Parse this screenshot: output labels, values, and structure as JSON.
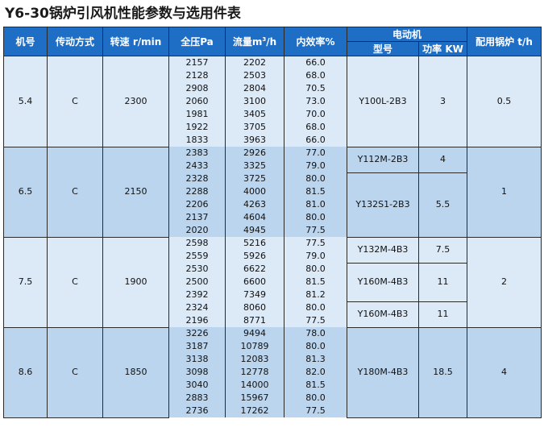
{
  "title": "Y6-30锅炉引风机性能参数与选用件表",
  "headers": {
    "model_no": "机号",
    "drive": "传动方式",
    "speed": "转速 r/min",
    "pressure": "全压Pa",
    "flow_prefix": "流量m",
    "flow_sup": "3",
    "flow_suffix": "/h",
    "efficiency": "内效率%",
    "motor": "电动机",
    "motor_type": "型号",
    "motor_power": "功率 KW",
    "boiler": "配用锅炉 t/h"
  },
  "groups": [
    {
      "model_no": "5.4",
      "drive": "C",
      "speed": "2300",
      "boiler": "0.5",
      "rows": [
        {
          "pressure": "2157",
          "flow": "2202",
          "efficiency": "66.0"
        },
        {
          "pressure": "2128",
          "flow": "2503",
          "efficiency": "68.0"
        },
        {
          "pressure": "2908",
          "flow": "2804",
          "efficiency": "70.5"
        },
        {
          "pressure": "2060",
          "flow": "3100",
          "efficiency": "73.0"
        },
        {
          "pressure": "1981",
          "flow": "3405",
          "efficiency": "70.0"
        },
        {
          "pressure": "1922",
          "flow": "3705",
          "efficiency": "68.0"
        },
        {
          "pressure": "1833",
          "flow": "3963",
          "efficiency": "66.0"
        }
      ],
      "motors": [
        {
          "type": "Y100L-2B3",
          "power": "3",
          "rowspan": 7
        }
      ]
    },
    {
      "model_no": "6.5",
      "drive": "C",
      "speed": "2150",
      "boiler": "1",
      "rows": [
        {
          "pressure": "2383",
          "flow": "2926",
          "efficiency": "77.0"
        },
        {
          "pressure": "2433",
          "flow": "3325",
          "efficiency": "79.0"
        },
        {
          "pressure": "2328",
          "flow": "3725",
          "efficiency": "80.0"
        },
        {
          "pressure": "2288",
          "flow": "4000",
          "efficiency": "81.5"
        },
        {
          "pressure": "2206",
          "flow": "4263",
          "efficiency": "81.0"
        },
        {
          "pressure": "2137",
          "flow": "4604",
          "efficiency": "80.0"
        },
        {
          "pressure": "2020",
          "flow": "4945",
          "efficiency": "77.5"
        }
      ],
      "motors": [
        {
          "type": "Y112M-2B3",
          "power": "4",
          "rowspan": 2
        },
        {
          "type": "Y132S1-2B3",
          "power": "5.5",
          "rowspan": 5
        }
      ]
    },
    {
      "model_no": "7.5",
      "drive": "C",
      "speed": "1900",
      "boiler": "2",
      "rows": [
        {
          "pressure": "2598",
          "flow": "5216",
          "efficiency": "77.5"
        },
        {
          "pressure": "2559",
          "flow": "5926",
          "efficiency": "79.0"
        },
        {
          "pressure": "2530",
          "flow": "6622",
          "efficiency": "80.0"
        },
        {
          "pressure": "2500",
          "flow": "6600",
          "efficiency": "81.5"
        },
        {
          "pressure": "2392",
          "flow": "7349",
          "efficiency": "81.2"
        },
        {
          "pressure": "2324",
          "flow": "8060",
          "efficiency": "80.0"
        },
        {
          "pressure": "2196",
          "flow": "8771",
          "efficiency": "77.5"
        }
      ],
      "motors": [
        {
          "type": "Y132M-4B3",
          "power": "7.5",
          "rowspan": 2
        },
        {
          "type": "Y160M-4B3",
          "power": "11",
          "rowspan": 3
        },
        {
          "type": "Y160M-4B3",
          "power": "11",
          "rowspan": 2
        }
      ]
    },
    {
      "model_no": "8.6",
      "drive": "C",
      "speed": "1850",
      "boiler": "4",
      "rows": [
        {
          "pressure": "3226",
          "flow": "9494",
          "efficiency": "78.0"
        },
        {
          "pressure": "3187",
          "flow": "10789",
          "efficiency": "80.0"
        },
        {
          "pressure": "3138",
          "flow": "12083",
          "efficiency": "81.3"
        },
        {
          "pressure": "3098",
          "flow": "12778",
          "efficiency": "82.0"
        },
        {
          "pressure": "3040",
          "flow": "14000",
          "efficiency": "81.5"
        },
        {
          "pressure": "2883",
          "flow": "15967",
          "efficiency": "80.0"
        },
        {
          "pressure": "2736",
          "flow": "17262",
          "efficiency": "77.5"
        }
      ],
      "motors": [
        {
          "type": "Y180M-4B3",
          "power": "18.5",
          "rowspan": 7
        }
      ]
    }
  ]
}
